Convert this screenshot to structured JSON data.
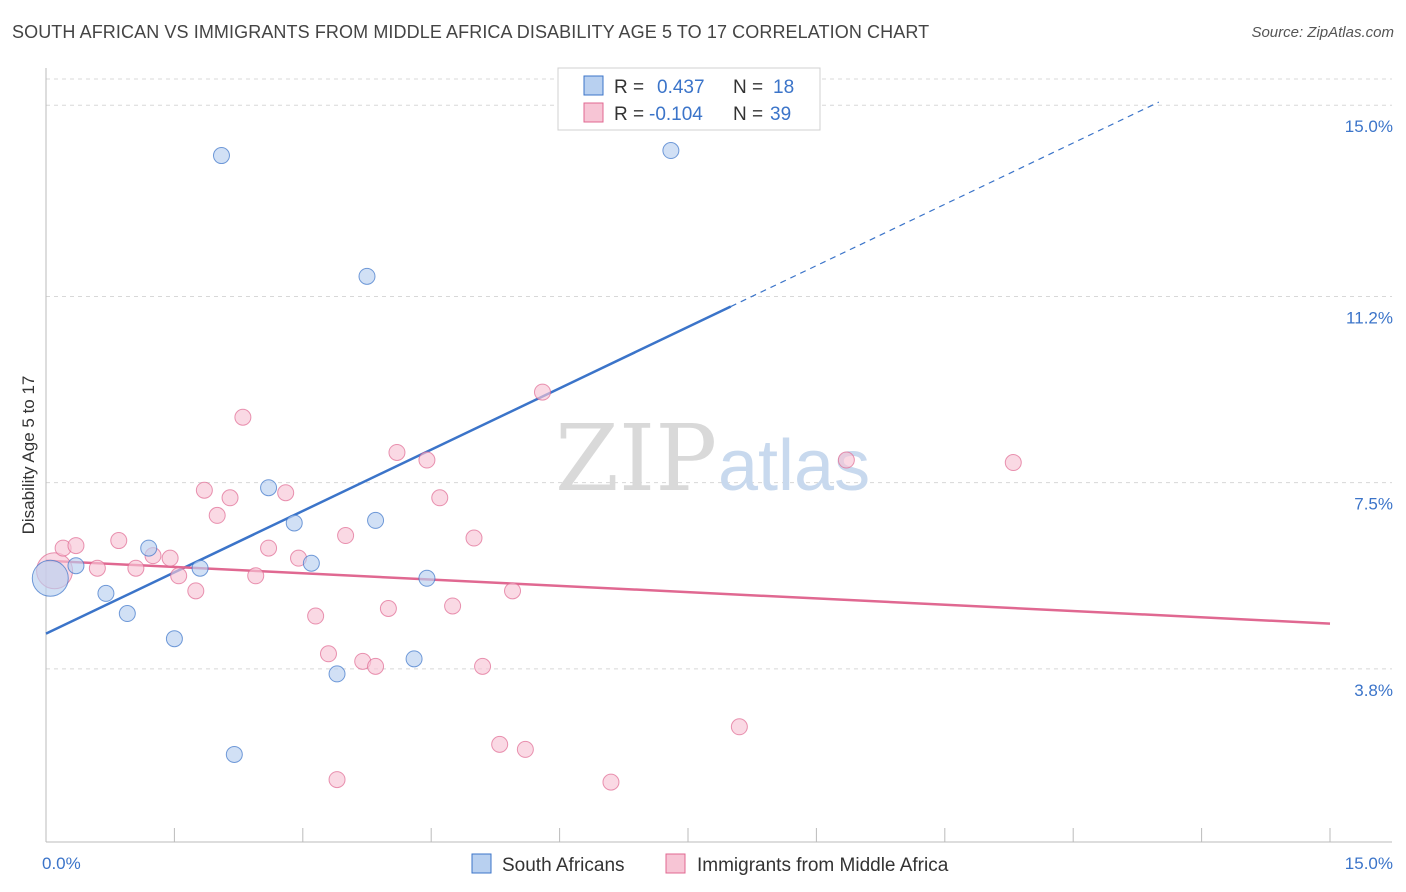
{
  "header": {
    "title": "SOUTH AFRICAN VS IMMIGRANTS FROM MIDDLE AFRICA DISABILITY AGE 5 TO 17 CORRELATION CHART",
    "source": "Source: ZipAtlas.com"
  },
  "watermark": {
    "zip": "ZIP",
    "atlas": "atlas"
  },
  "colors": {
    "blue": "#3b74c9",
    "blue_fill": "#b8d0f0",
    "pink": "#e06891",
    "pink_fill": "#f7c5d5",
    "grid": "#d8d8d8"
  },
  "chart_data": {
    "type": "scatter",
    "title": "SOUTH AFRICAN VS IMMIGRANTS FROM MIDDLE AFRICA DISABILITY AGE 5 TO 17 CORRELATION CHART",
    "xlabel": "",
    "ylabel": "Disability Age 5 to 17",
    "xlim": [
      0,
      15
    ],
    "ylim": [
      0.4,
      15.7
    ],
    "x_tick_labels": [
      {
        "value": 0,
        "label": "0.0%"
      },
      {
        "value": 15,
        "label": "15.0%"
      }
    ],
    "y_tick_labels": [
      {
        "value": 3.8,
        "label": "3.8%"
      },
      {
        "value": 7.5,
        "label": "7.5%"
      },
      {
        "value": 11.2,
        "label": "11.2%"
      },
      {
        "value": 15.0,
        "label": "15.0%"
      }
    ],
    "legend": [
      {
        "r_label": "R =",
        "r_value": "0.437",
        "n_label": "N =",
        "n_value": "18"
      },
      {
        "r_label": "R =",
        "r_value": "-0.104",
        "n_label": "N =",
        "n_value": "39"
      }
    ],
    "series": [
      {
        "name": "South Africans",
        "color": "#3b74c9",
        "points": [
          {
            "x": 0.05,
            "y": 5.6,
            "big": true
          },
          {
            "x": 0.7,
            "y": 5.3
          },
          {
            "x": 0.95,
            "y": 4.9
          },
          {
            "x": 1.2,
            "y": 6.2
          },
          {
            "x": 1.5,
            "y": 4.4
          },
          {
            "x": 1.8,
            "y": 5.8
          },
          {
            "x": 2.05,
            "y": 14.0
          },
          {
            "x": 2.2,
            "y": 2.1
          },
          {
            "x": 2.6,
            "y": 7.4
          },
          {
            "x": 2.9,
            "y": 6.7
          },
          {
            "x": 3.1,
            "y": 5.9
          },
          {
            "x": 3.4,
            "y": 3.7
          },
          {
            "x": 3.75,
            "y": 11.6
          },
          {
            "x": 3.85,
            "y": 6.75
          },
          {
            "x": 4.3,
            "y": 4.0
          },
          {
            "x": 4.45,
            "y": 5.6
          },
          {
            "x": 7.3,
            "y": 14.1
          },
          {
            "x": 0.35,
            "y": 5.85
          }
        ],
        "trend": {
          "x0": 0,
          "y0": 4.5,
          "x1": 8.0,
          "y1": 11.0,
          "x_dash_end": 13.0
        }
      },
      {
        "name": "Immigrants from Middle Africa",
        "color": "#e06891",
        "points": [
          {
            "x": 0.1,
            "y": 5.75,
            "big": true
          },
          {
            "x": 0.2,
            "y": 6.2
          },
          {
            "x": 0.35,
            "y": 6.25
          },
          {
            "x": 0.6,
            "y": 5.8
          },
          {
            "x": 0.85,
            "y": 6.35
          },
          {
            "x": 1.05,
            "y": 5.8
          },
          {
            "x": 1.25,
            "y": 6.05
          },
          {
            "x": 1.45,
            "y": 6.0
          },
          {
            "x": 1.55,
            "y": 5.65
          },
          {
            "x": 1.75,
            "y": 5.35
          },
          {
            "x": 1.85,
            "y": 7.35
          },
          {
            "x": 2.0,
            "y": 6.85
          },
          {
            "x": 2.15,
            "y": 7.2
          },
          {
            "x": 2.3,
            "y": 8.8
          },
          {
            "x": 2.45,
            "y": 5.65
          },
          {
            "x": 2.6,
            "y": 6.2
          },
          {
            "x": 2.8,
            "y": 7.3
          },
          {
            "x": 2.95,
            "y": 6.0
          },
          {
            "x": 3.15,
            "y": 4.85
          },
          {
            "x": 3.3,
            "y": 4.1
          },
          {
            "x": 3.5,
            "y": 6.45
          },
          {
            "x": 3.7,
            "y": 3.95
          },
          {
            "x": 3.85,
            "y": 3.85
          },
          {
            "x": 4.0,
            "y": 5.0
          },
          {
            "x": 4.1,
            "y": 8.1
          },
          {
            "x": 3.4,
            "y": 1.6
          },
          {
            "x": 4.45,
            "y": 7.95
          },
          {
            "x": 4.6,
            "y": 7.2
          },
          {
            "x": 4.75,
            "y": 5.05
          },
          {
            "x": 5.0,
            "y": 6.4
          },
          {
            "x": 5.1,
            "y": 3.85
          },
          {
            "x": 5.3,
            "y": 2.3
          },
          {
            "x": 5.45,
            "y": 5.35
          },
          {
            "x": 5.6,
            "y": 2.2
          },
          {
            "x": 5.8,
            "y": 9.3
          },
          {
            "x": 6.6,
            "y": 1.55
          },
          {
            "x": 8.1,
            "y": 2.65
          },
          {
            "x": 9.35,
            "y": 7.95
          },
          {
            "x": 11.3,
            "y": 7.9
          }
        ],
        "trend": {
          "x0": 0,
          "y0": 5.95,
          "x1": 15.0,
          "y1": 4.7
        }
      }
    ]
  },
  "bottom_legend": [
    {
      "label": "South Africans"
    },
    {
      "label": "Immigrants from Middle Africa"
    }
  ]
}
